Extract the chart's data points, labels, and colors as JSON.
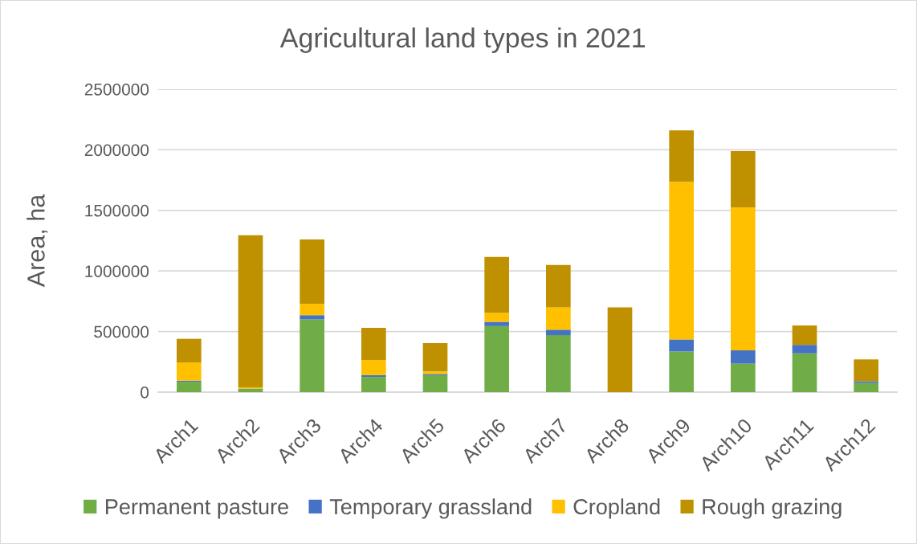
{
  "chart_data": {
    "type": "bar",
    "title": "Agricultural land types in 2021",
    "ylabel": "Area, ha",
    "categories": [
      "Arch1",
      "Arch2",
      "Arch3",
      "Arch4",
      "Arch5",
      "Arch6",
      "Arch7",
      "Arch8",
      "Arch9",
      "Arch10",
      "Arch11",
      "Arch12"
    ],
    "series": [
      {
        "name": "Permanent pasture",
        "color": "#70ad47",
        "values": [
          85000,
          30000,
          600000,
          125000,
          140000,
          545000,
          470000,
          0,
          335000,
          235000,
          320000,
          75000
        ]
      },
      {
        "name": "Temporary grassland",
        "color": "#4472c4",
        "values": [
          10000,
          0,
          35000,
          15000,
          10000,
          35000,
          45000,
          0,
          100000,
          110000,
          70000,
          15000
        ]
      },
      {
        "name": "Cropland",
        "color": "#ffc000",
        "values": [
          150000,
          10000,
          95000,
          125000,
          20000,
          75000,
          185000,
          0,
          1300000,
          1180000,
          0,
          0
        ]
      },
      {
        "name": "Rough grazing",
        "color": "#bf9000",
        "values": [
          195000,
          1255000,
          530000,
          265000,
          235000,
          460000,
          350000,
          700000,
          425000,
          465000,
          160000,
          180000
        ]
      }
    ],
    "stacked": true,
    "ylim": [
      0,
      2500000
    ],
    "yticks": [
      0,
      500000,
      1000000,
      1500000,
      2000000,
      2500000
    ],
    "grid": "y",
    "legend": "bottom"
  }
}
